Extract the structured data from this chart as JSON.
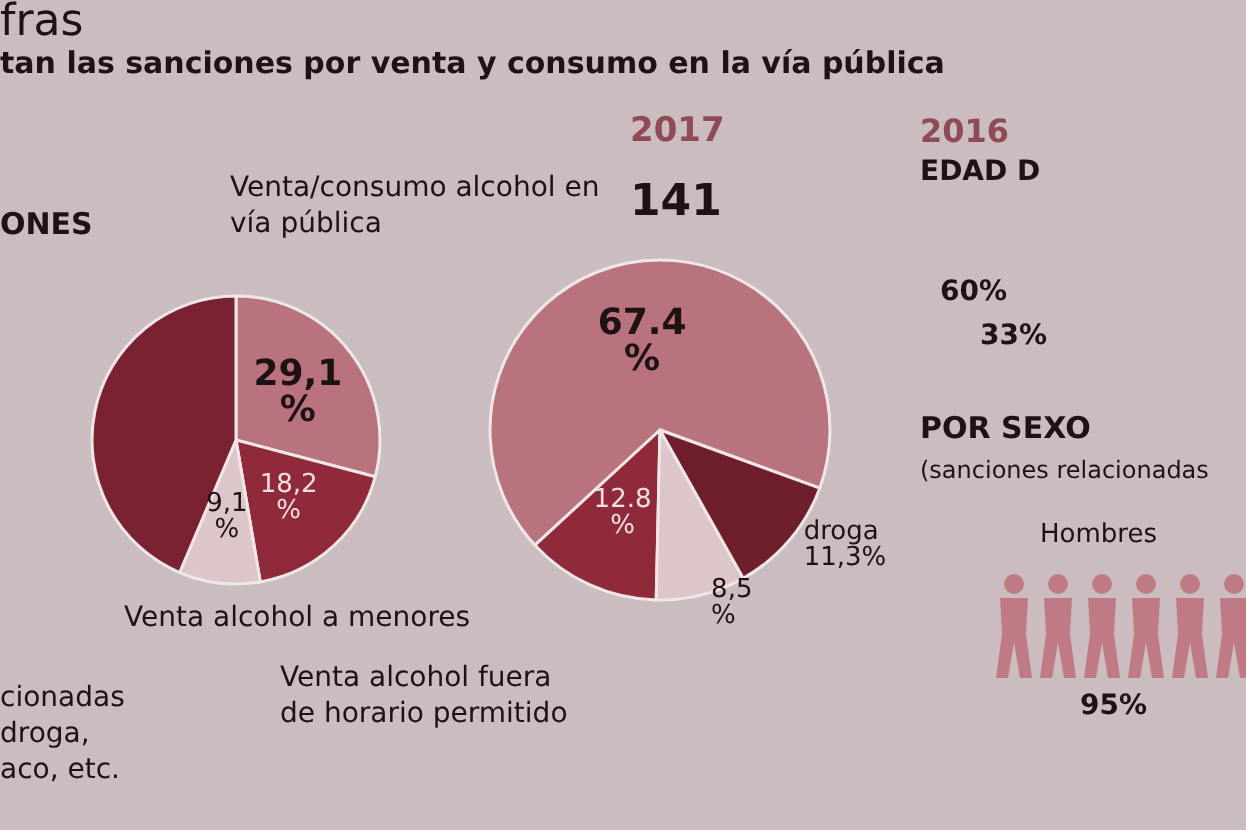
{
  "chart_data": [
    {
      "type": "pie",
      "title": "tan las sanciones por venta y consumo en la vía pública",
      "categories": [
        "Venta/consumo alcohol en vía pública",
        "Venta alcohol fuera de horario permitido",
        "Venta alcohol a menores",
        null
      ],
      "values": [
        29.1,
        18.2,
        9.1,
        43.6
      ],
      "value_labels": [
        "29,1 %",
        "18,2 %",
        "9,1 %",
        null
      ],
      "colors": [
        "#b9737f",
        "#8e2a3a",
        "#dcc6c9",
        "#7a2232"
      ],
      "annotations": [
        "fras",
        "ONES",
        "cionadas droga, aco, etc."
      ]
    },
    {
      "type": "pie",
      "title": "2017",
      "subtitle": "141",
      "categories": [
        null,
        null,
        null,
        "droga"
      ],
      "values": [
        67.4,
        12.8,
        8.5,
        11.3
      ],
      "value_labels": [
        "67.4 %",
        "12.8 %",
        "8,5 %",
        "11,3%"
      ],
      "colors": [
        "#b9737f",
        "#8e2a3a",
        "#dcc6c9",
        "#6e1f2b"
      ]
    },
    {
      "type": "other",
      "title": "POR SEXO",
      "subtitle": "(sanciones relacionadas",
      "annotations": [
        "2016",
        "EDAD D",
        "60%",
        "33%",
        "Hombres",
        "95%"
      ]
    }
  ]
}
